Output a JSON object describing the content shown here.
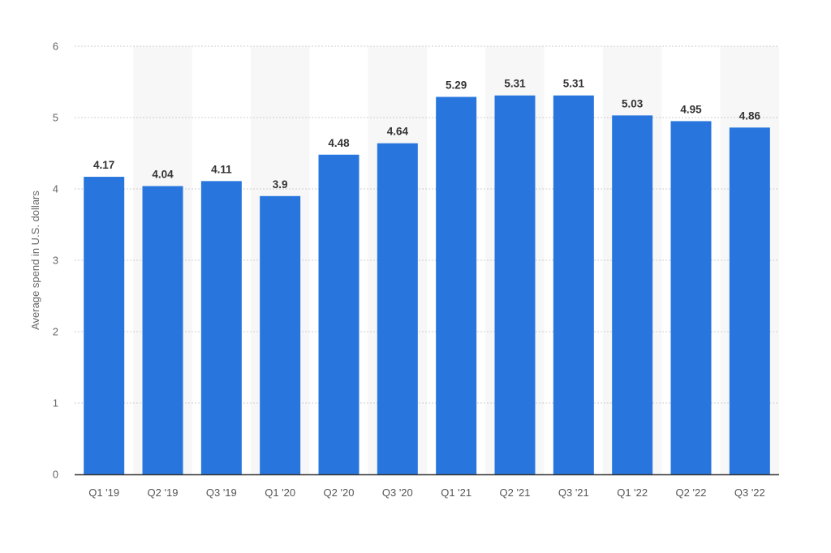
{
  "chart_data": {
    "type": "bar",
    "categories": [
      "Q1 '19",
      "Q2 '19",
      "Q3 '19",
      "Q1 '20",
      "Q2 '20",
      "Q3 '20",
      "Q1 '21",
      "Q2 '21",
      "Q3 '21",
      "Q1 '22",
      "Q2 '22",
      "Q3 '22"
    ],
    "values": [
      4.17,
      4.04,
      4.11,
      3.9,
      4.48,
      4.64,
      5.29,
      5.31,
      5.31,
      5.03,
      4.95,
      4.86
    ],
    "value_labels": [
      "4.17",
      "4.04",
      "4.11",
      "3.9",
      "4.48",
      "4.64",
      "5.29",
      "5.31",
      "5.31",
      "5.03",
      "4.95",
      "4.86"
    ],
    "title": "",
    "xlabel": "",
    "ylabel": "Average spend in U.S. dollars",
    "ylim": [
      0,
      6
    ],
    "yticks": [
      0,
      1,
      2,
      3,
      4,
      5,
      6
    ],
    "grid": true,
    "legend": "none",
    "colors": {
      "bar": "#2876dd",
      "band": "#f7f7f7",
      "grid": "#cccccc",
      "axis": "#333333"
    }
  }
}
